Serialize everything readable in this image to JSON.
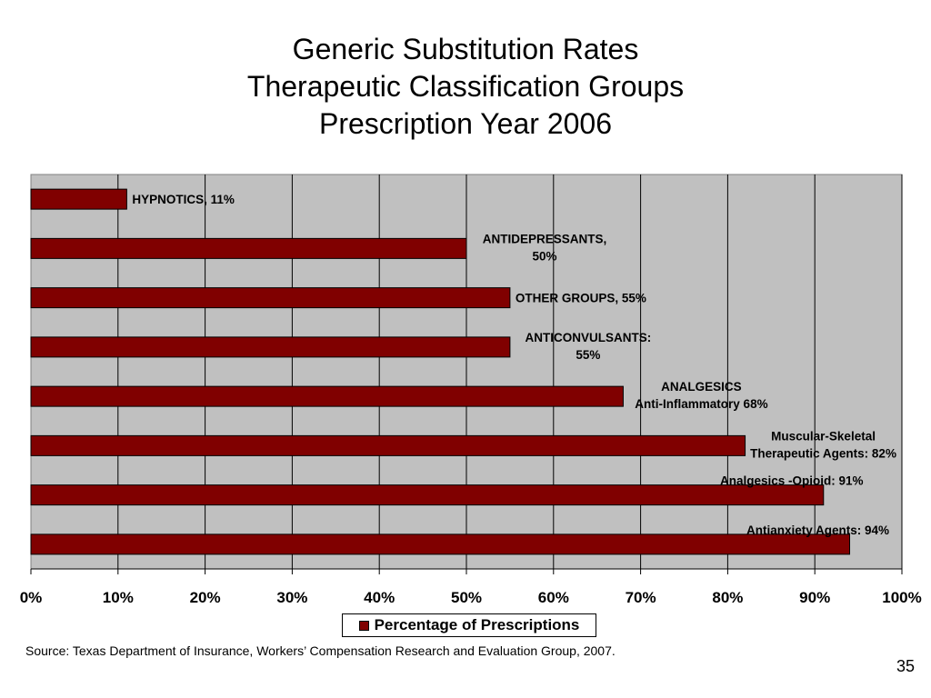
{
  "title_lines": [
    "Generic Substitution Rates",
    "Therapeutic Classification Groups",
    "Prescription Year 2006"
  ],
  "legend": {
    "label": "Percentage of Prescriptions",
    "color": "#800000"
  },
  "source": "Source: Texas Department of Insurance, Workers’ Compensation Research and Evaluation Group, 2007.",
  "page_number": "35",
  "chart_data": {
    "type": "bar",
    "orientation": "horizontal",
    "categories": [
      "HYPNOTICS",
      "ANTIDEPRESSANTS",
      "OTHER GROUPS",
      "ANTICONVULSANTS",
      "ANALGESICS Anti-Inflammatory",
      "Muscular-Skeletal Therapeutic Agents",
      "Analgesics -Opioid",
      "Antianxiety Agents"
    ],
    "series": [
      {
        "name": "Percentage of Prescriptions",
        "values": [
          11,
          50,
          55,
          55,
          68,
          82,
          91,
          94
        ],
        "color": "#800000"
      }
    ],
    "data_labels": [
      [
        "HYPNOTICS, 11%"
      ],
      [
        "ANTIDEPRESSANTS,",
        "50%"
      ],
      [
        "OTHER GROUPS, 55%"
      ],
      [
        "ANTICONVULSANTS:",
        "55%"
      ],
      [
        "ANALGESICS",
        "Anti-Inflammatory  68%"
      ],
      [
        "Muscular-Skeletal",
        "Therapeutic Agents: 82%"
      ],
      [
        "Analgesics -Opioid: 91%"
      ],
      [
        "Antianxiety Agents: 94%"
      ]
    ],
    "x_ticks": [
      "0%",
      "10%",
      "20%",
      "30%",
      "40%",
      "50%",
      "60%",
      "70%",
      "80%",
      "90%",
      "100%"
    ],
    "xlim": [
      0,
      100
    ],
    "grid": true,
    "plot_background": "#c0c0c0",
    "legend_position": "bottom"
  }
}
